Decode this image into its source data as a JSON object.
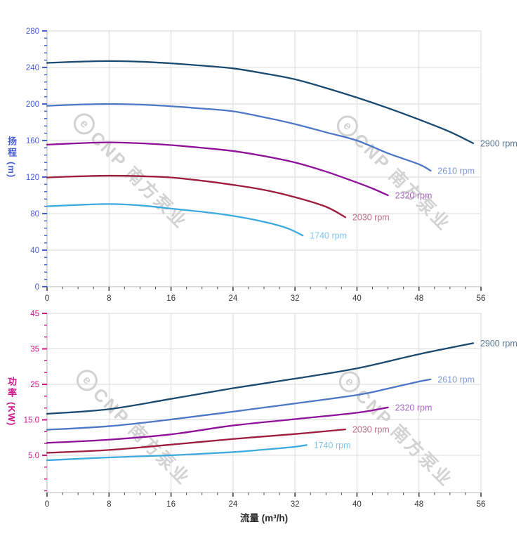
{
  "watermark": {
    "logo_letter": "e",
    "text": "CNP 南方泵业",
    "color": "#d2d2d2"
  },
  "styles": {
    "grid_color": "#dadada",
    "axis_line_color": "#c6c6c6",
    "x_tick_color": "#444444",
    "x_tick_label_color": "#333333"
  },
  "chart_data": [
    {
      "type": "line",
      "title": "",
      "ylabel": "扬程",
      "ylabel_unit": "(m)",
      "xlabel": "",
      "xlim": [
        0,
        56
      ],
      "ylim": [
        0,
        280
      ],
      "x_ticks": [
        0,
        8,
        16,
        24,
        32,
        40,
        48,
        56
      ],
      "x_tick_labels": [
        "0",
        "8",
        "16",
        "24",
        "32",
        "40",
        "48",
        "56"
      ],
      "y_ticks": [
        0,
        40,
        80,
        120,
        160,
        200,
        240,
        280
      ],
      "y_tick_labels": [
        "0",
        "40",
        "80",
        "120",
        "160",
        "200",
        "240",
        "280"
      ],
      "x_minor_step": 2,
      "y_minor_step": 8,
      "grid": true,
      "legend_position": "curve-end-labels",
      "axis_color": "#4a5ed6",
      "series": [
        {
          "name": "2900 rpm",
          "color": "#1b4a71",
          "label_color": "#5a7894",
          "points": [
            [
              0,
              245
            ],
            [
              4,
              246.3
            ],
            [
              8,
              247
            ],
            [
              12,
              246.3
            ],
            [
              16,
              244.5
            ],
            [
              20,
              242
            ],
            [
              24,
              239
            ],
            [
              28,
              233.5
            ],
            [
              32,
              227
            ],
            [
              36,
              217.5
            ],
            [
              40,
              207
            ],
            [
              44,
              195.5
            ],
            [
              48,
              183
            ],
            [
              52,
              169.5
            ],
            [
              55,
              157
            ]
          ]
        },
        {
          "name": "2610 rpm",
          "color": "#4d77c6",
          "label_color": "#7e9ad8",
          "points": [
            [
              0,
              198
            ],
            [
              4,
              199.3
            ],
            [
              8,
              200
            ],
            [
              12,
              199.3
            ],
            [
              16,
              197.5
            ],
            [
              20,
              195
            ],
            [
              24,
              192
            ],
            [
              28,
              185.5
            ],
            [
              32,
              178
            ],
            [
              36,
              169
            ],
            [
              40,
              160
            ],
            [
              44,
              146
            ],
            [
              48,
              134
            ],
            [
              49.5,
              127
            ]
          ]
        },
        {
          "name": "2320 rpm",
          "color": "#8f109a",
          "label_color": "#a965c4",
          "points": [
            [
              0,
              155.5
            ],
            [
              4,
              157
            ],
            [
              8,
              158
            ],
            [
              12,
              157
            ],
            [
              16,
              155
            ],
            [
              20,
              152
            ],
            [
              24,
              148.5
            ],
            [
              28,
              143
            ],
            [
              32,
              136
            ],
            [
              36,
              126
            ],
            [
              40,
              114
            ],
            [
              42,
              107.5
            ],
            [
              44,
              100
            ]
          ]
        },
        {
          "name": "2030 rpm",
          "color": "#9e1d3e",
          "label_color": "#bb6f87",
          "points": [
            [
              0,
              119.5
            ],
            [
              4,
              120.8
            ],
            [
              8,
              121.5
            ],
            [
              12,
              121
            ],
            [
              16,
              119.5
            ],
            [
              20,
              116
            ],
            [
              24,
              111.5
            ],
            [
              28,
              106
            ],
            [
              32,
              98
            ],
            [
              36,
              87.5
            ],
            [
              38.5,
              76
            ]
          ]
        },
        {
          "name": "1740 rpm",
          "color": "#3caade",
          "label_color": "#82c6ec",
          "points": [
            [
              0,
              88
            ],
            [
              4,
              89.5
            ],
            [
              8,
              90.5
            ],
            [
              12,
              89
            ],
            [
              16,
              85.5
            ],
            [
              20,
              82
            ],
            [
              24,
              77.5
            ],
            [
              28,
              71
            ],
            [
              31,
              64
            ],
            [
              33,
              56
            ]
          ]
        }
      ]
    },
    {
      "type": "line",
      "title": "",
      "ylabel": "功率",
      "ylabel_unit": "(KW)",
      "xlabel": "流量 (m³/h)",
      "xlim": [
        0,
        56
      ],
      "ylim": [
        -5.5,
        45
      ],
      "x_ticks": [
        0,
        8,
        16,
        24,
        32,
        40,
        48,
        56
      ],
      "x_tick_labels": [
        "0",
        "8",
        "16",
        "24",
        "32",
        "40",
        "48",
        "56"
      ],
      "y_ticks": [
        5,
        15,
        25,
        35,
        45
      ],
      "y_tick_labels": [
        "5.0",
        "15.0",
        "25",
        "35",
        "45"
      ],
      "x_minor_step": 2,
      "y_minor_step": 3.3333,
      "grid": true,
      "legend_position": "curve-end-labels",
      "axis_color": "#cc1688",
      "series": [
        {
          "name": "2900 rpm",
          "color": "#1b4a71",
          "label_color": "#5a7894",
          "points": [
            [
              0,
              16.7
            ],
            [
              8,
              18.0
            ],
            [
              16,
              20.9
            ],
            [
              24,
              23.9
            ],
            [
              32,
              26.6
            ],
            [
              40,
              29.5
            ],
            [
              48,
              33.5
            ],
            [
              55,
              36.6
            ]
          ]
        },
        {
          "name": "2610 rpm",
          "color": "#4d77c6",
          "label_color": "#7e9ad8",
          "points": [
            [
              0,
              12.2
            ],
            [
              8,
              13.2
            ],
            [
              16,
              15.1
            ],
            [
              24,
              17.3
            ],
            [
              32,
              19.6
            ],
            [
              40,
              22.0
            ],
            [
              44,
              23.8
            ],
            [
              48,
              25.8
            ],
            [
              49.5,
              26.4
            ]
          ]
        },
        {
          "name": "2320 rpm",
          "color": "#8f109a",
          "label_color": "#a965c4",
          "points": [
            [
              0,
              8.5
            ],
            [
              8,
              9.4
            ],
            [
              16,
              10.9
            ],
            [
              24,
              13.4
            ],
            [
              32,
              15.2
            ],
            [
              40,
              17.0
            ],
            [
              44,
              18.5
            ]
          ]
        },
        {
          "name": "2030 rpm",
          "color": "#9e1d3e",
          "label_color": "#bb6f87",
          "points": [
            [
              0,
              5.7
            ],
            [
              8,
              6.5
            ],
            [
              16,
              8.0
            ],
            [
              24,
              9.6
            ],
            [
              32,
              11.0
            ],
            [
              38.5,
              12.3
            ]
          ]
        },
        {
          "name": "1740 rpm",
          "color": "#3caade",
          "label_color": "#82c6ec",
          "points": [
            [
              0,
              3.6
            ],
            [
              8,
              4.4
            ],
            [
              16,
              5.0
            ],
            [
              24,
              5.9
            ],
            [
              28,
              6.6
            ],
            [
              32,
              7.4
            ],
            [
              33.5,
              7.9
            ]
          ]
        }
      ]
    }
  ]
}
